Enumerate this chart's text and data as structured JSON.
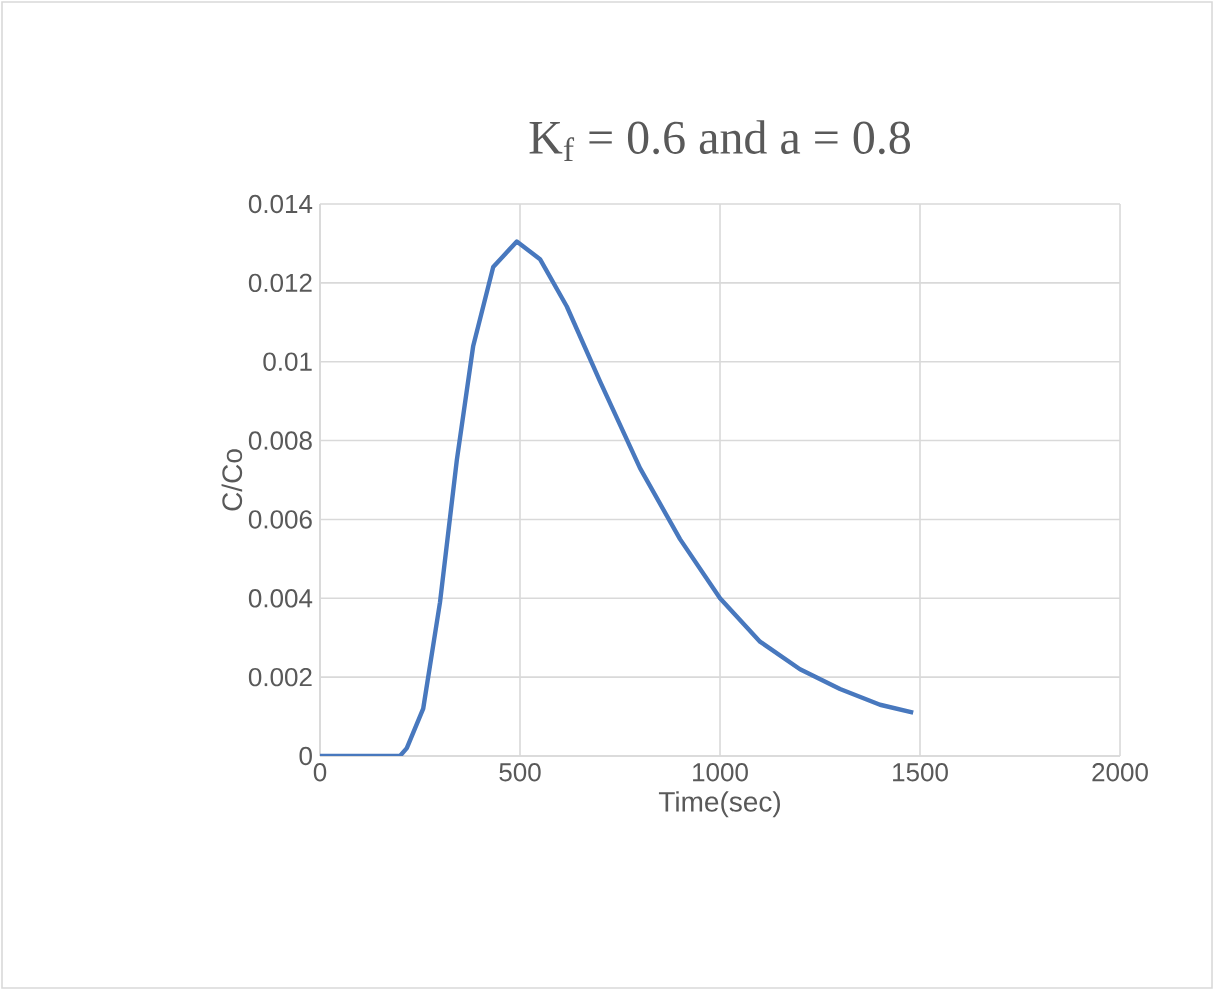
{
  "chart_data": {
    "type": "line",
    "title": "K$_{f}$ = 0.6 and a = 0.8",
    "xlabel": "Time(sec)",
    "ylabel": "C/Co",
    "x": [
      0,
      100,
      200,
      217,
      258,
      300,
      342,
      383,
      433,
      492,
      550,
      617,
      700,
      800,
      900,
      1000,
      1100,
      1200,
      1300,
      1400,
      1483
    ],
    "series": [
      {
        "color": "#4878be",
        "values": [
          0,
          0,
          0,
          0.0002,
          0.0012,
          0.0039,
          0.0075,
          0.0104,
          0.0124,
          0.01305,
          0.0126,
          0.0114,
          0.0095,
          0.0073,
          0.0055,
          0.004,
          0.0029,
          0.0022,
          0.0017,
          0.0013,
          0.0011
        ]
      }
    ],
    "xlim": [
      0,
      2000
    ],
    "xticks": [
      0,
      500,
      1000,
      1500,
      2000
    ],
    "ylim": [
      0,
      0.014
    ],
    "yticks": [
      {
        "value": 0,
        "label": "0"
      },
      {
        "value": 0.002,
        "label": "0.002"
      },
      {
        "value": 0.004,
        "label": "0.004"
      },
      {
        "value": 0.006,
        "label": "0.006"
      },
      {
        "value": 0.008,
        "label": "0.008"
      },
      {
        "value": 0.01,
        "label": "0.01"
      },
      {
        "value": 0.012,
        "label": "0.012"
      },
      {
        "value": 0.014,
        "label": "0.014"
      }
    ],
    "grid": true,
    "marker": "none",
    "line_style": "solid"
  }
}
